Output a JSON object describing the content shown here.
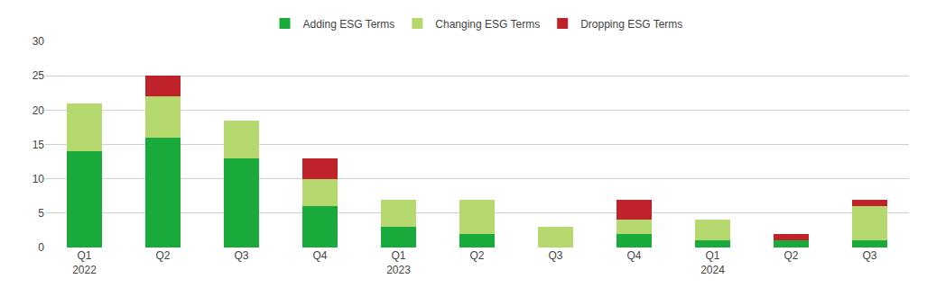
{
  "chart_data": {
    "type": "bar",
    "stacked": true,
    "categories": [
      "Q1\n2022",
      "Q2",
      "Q3",
      "Q4",
      "Q1\n2023",
      "Q2",
      "Q3",
      "Q4",
      "Q1\n2024",
      "Q2",
      "Q3"
    ],
    "series": [
      {
        "name": "Adding ESG Terms",
        "color": "#1aaa3c",
        "values": [
          14,
          16,
          13,
          6,
          3,
          2,
          0,
          2,
          1,
          1,
          1
        ]
      },
      {
        "name": "Changing ESG Terms",
        "color": "#b5d96e",
        "values": [
          7,
          6,
          5.5,
          4,
          4,
          5,
          3,
          2,
          3,
          0,
          5
        ]
      },
      {
        "name": "Dropping ESG Terms",
        "color": "#c0222a",
        "values": [
          0,
          3,
          0,
          3,
          0,
          0,
          0,
          3,
          0,
          1,
          1
        ]
      }
    ],
    "ylim": [
      0,
      30
    ],
    "yticks": [
      0,
      5,
      10,
      15,
      20,
      25,
      30
    ],
    "grid": true,
    "legend": "top"
  }
}
